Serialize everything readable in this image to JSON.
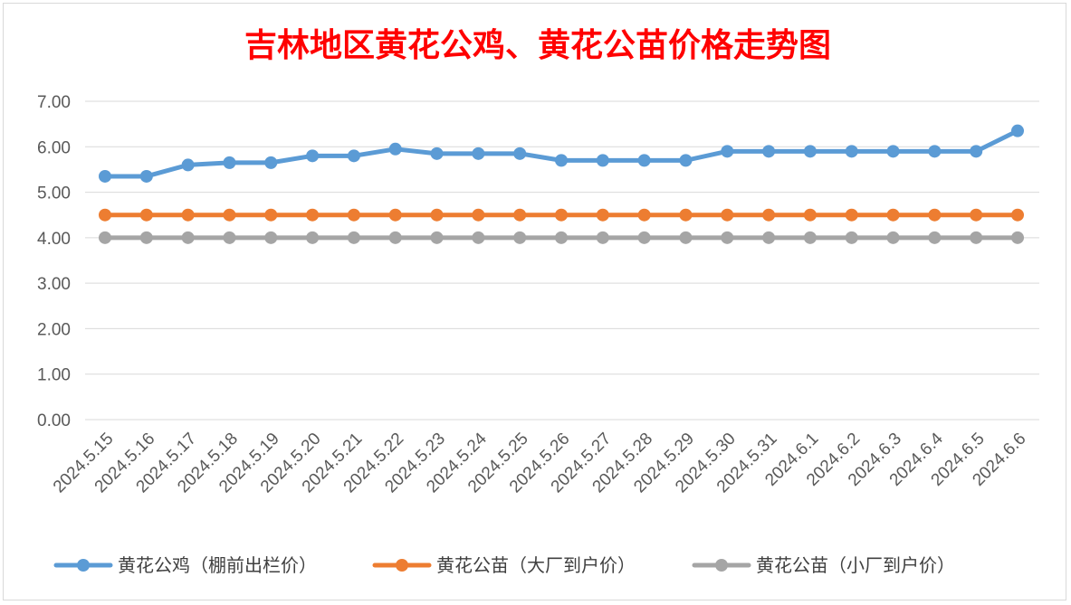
{
  "chart_data": {
    "type": "line",
    "title": "吉林地区黄花公鸡、黄花公苗价格走势图",
    "categories": [
      "2024.5.15",
      "2024.5.16",
      "2024.5.17",
      "2024.5.18",
      "2024.5.19",
      "2024.5.20",
      "2024.5.21",
      "2024.5.22",
      "2024.5.23",
      "2024.5.24",
      "2024.5.25",
      "2024.5.26",
      "2024.5.27",
      "2024.5.28",
      "2024.5.29",
      "2024.5.30",
      "2024.5.31",
      "2024.6.1",
      "2024.6.2",
      "2024.6.3",
      "2024.6.4",
      "2024.6.5",
      "2024.6.6"
    ],
    "series": [
      {
        "name": "黄花公鸡（棚前出栏价）",
        "color": "#5b9bd5",
        "values": [
          5.35,
          5.35,
          5.6,
          5.65,
          5.65,
          5.8,
          5.8,
          5.95,
          5.85,
          5.85,
          5.85,
          5.7,
          5.7,
          5.7,
          5.7,
          5.9,
          5.9,
          5.9,
          5.9,
          5.9,
          5.9,
          5.9,
          6.35
        ]
      },
      {
        "name": "黄花公苗（大厂到户价）",
        "color": "#ed7d31",
        "values": [
          4.5,
          4.5,
          4.5,
          4.5,
          4.5,
          4.5,
          4.5,
          4.5,
          4.5,
          4.5,
          4.5,
          4.5,
          4.5,
          4.5,
          4.5,
          4.5,
          4.5,
          4.5,
          4.5,
          4.5,
          4.5,
          4.5,
          4.5
        ]
      },
      {
        "name": "黄花公苗（小厂到户价）",
        "color": "#a5a5a5",
        "values": [
          4.0,
          4.0,
          4.0,
          4.0,
          4.0,
          4.0,
          4.0,
          4.0,
          4.0,
          4.0,
          4.0,
          4.0,
          4.0,
          4.0,
          4.0,
          4.0,
          4.0,
          4.0,
          4.0,
          4.0,
          4.0,
          4.0,
          4.0
        ]
      }
    ],
    "y_ticks": [
      "0.00",
      "1.00",
      "2.00",
      "3.00",
      "4.00",
      "5.00",
      "6.00",
      "7.00"
    ],
    "ylim": [
      0,
      7
    ],
    "grid": true,
    "legend_position": "bottom",
    "gridline_color": "#d9d9d9"
  }
}
